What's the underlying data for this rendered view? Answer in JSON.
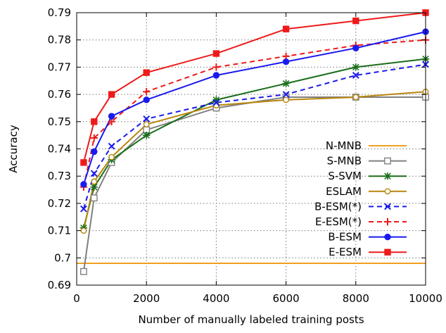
{
  "chart_data": {
    "type": "line",
    "title": "",
    "xlabel": "Number of manually labeled training posts",
    "ylabel": "Accuracy",
    "xlim": [
      0,
      10000
    ],
    "ylim": [
      0.69,
      0.79
    ],
    "xticks": [
      0,
      2000,
      4000,
      6000,
      8000,
      10000
    ],
    "yticks": [
      0.69,
      0.7,
      0.71,
      0.72,
      0.73,
      0.74,
      0.75,
      0.76,
      0.77,
      0.78,
      0.79
    ],
    "xtick_labels": [
      "0",
      "2000",
      "4000",
      "6000",
      "8000",
      "10000"
    ],
    "ytick_labels": [
      "0.69",
      "0.7",
      "0.71",
      "0.72",
      "0.73",
      "0.74",
      "0.75",
      "0.76",
      "0.77",
      "0.78",
      "0.79"
    ],
    "grid": true,
    "legend_position": "right",
    "series": [
      {
        "name": "N-MNB",
        "color": "#f0a020",
        "dash": "solid",
        "marker": "none",
        "x": [
          0,
          10000
        ],
        "y": [
          0.698,
          0.698
        ]
      },
      {
        "name": "S-MNB",
        "color": "#808080",
        "dash": "solid",
        "marker": "open-square",
        "x": [
          200,
          500,
          1000,
          2000,
          4000,
          6000,
          8000,
          10000
        ],
        "y": [
          0.695,
          0.722,
          0.735,
          0.747,
          0.755,
          0.759,
          0.759,
          0.759
        ]
      },
      {
        "name": "S-SVM",
        "color": "#1a6e1a",
        "dash": "solid",
        "marker": "star",
        "x": [
          200,
          500,
          1000,
          2000,
          4000,
          6000,
          8000,
          10000
        ],
        "y": [
          0.711,
          0.726,
          0.736,
          0.745,
          0.758,
          0.764,
          0.77,
          0.773
        ]
      },
      {
        "name": "ESLAM",
        "color": "#b8860b",
        "dash": "solid",
        "marker": "open-circle",
        "x": [
          200,
          500,
          1000,
          2000,
          4000,
          6000,
          8000,
          10000
        ],
        "y": [
          0.71,
          0.728,
          0.737,
          0.749,
          0.756,
          0.758,
          0.759,
          0.761
        ]
      },
      {
        "name": "B-ESM(*)",
        "color": "#1a1aee",
        "dash": "dashed",
        "marker": "x",
        "x": [
          200,
          500,
          1000,
          2000,
          4000,
          6000,
          8000,
          10000
        ],
        "y": [
          0.718,
          0.731,
          0.741,
          0.751,
          0.757,
          0.76,
          0.767,
          0.771
        ]
      },
      {
        "name": "E-ESM(*)",
        "color": "#ee1a1a",
        "dash": "dashed",
        "marker": "plus",
        "x": [
          200,
          500,
          1000,
          2000,
          4000,
          6000,
          8000,
          10000
        ],
        "y": [
          0.726,
          0.744,
          0.75,
          0.761,
          0.77,
          0.774,
          0.778,
          0.78
        ]
      },
      {
        "name": "B-ESM",
        "color": "#1a1aee",
        "dash": "solid",
        "marker": "filled-circle",
        "x": [
          200,
          500,
          1000,
          2000,
          4000,
          6000,
          8000,
          10000
        ],
        "y": [
          0.727,
          0.739,
          0.752,
          0.758,
          0.767,
          0.772,
          0.777,
          0.783
        ]
      },
      {
        "name": "E-ESM",
        "color": "#ee1a1a",
        "dash": "solid",
        "marker": "filled-square",
        "x": [
          200,
          500,
          1000,
          2000,
          4000,
          6000,
          8000,
          10000
        ],
        "y": [
          0.735,
          0.75,
          0.76,
          0.768,
          0.775,
          0.784,
          0.787,
          0.79
        ]
      }
    ]
  }
}
